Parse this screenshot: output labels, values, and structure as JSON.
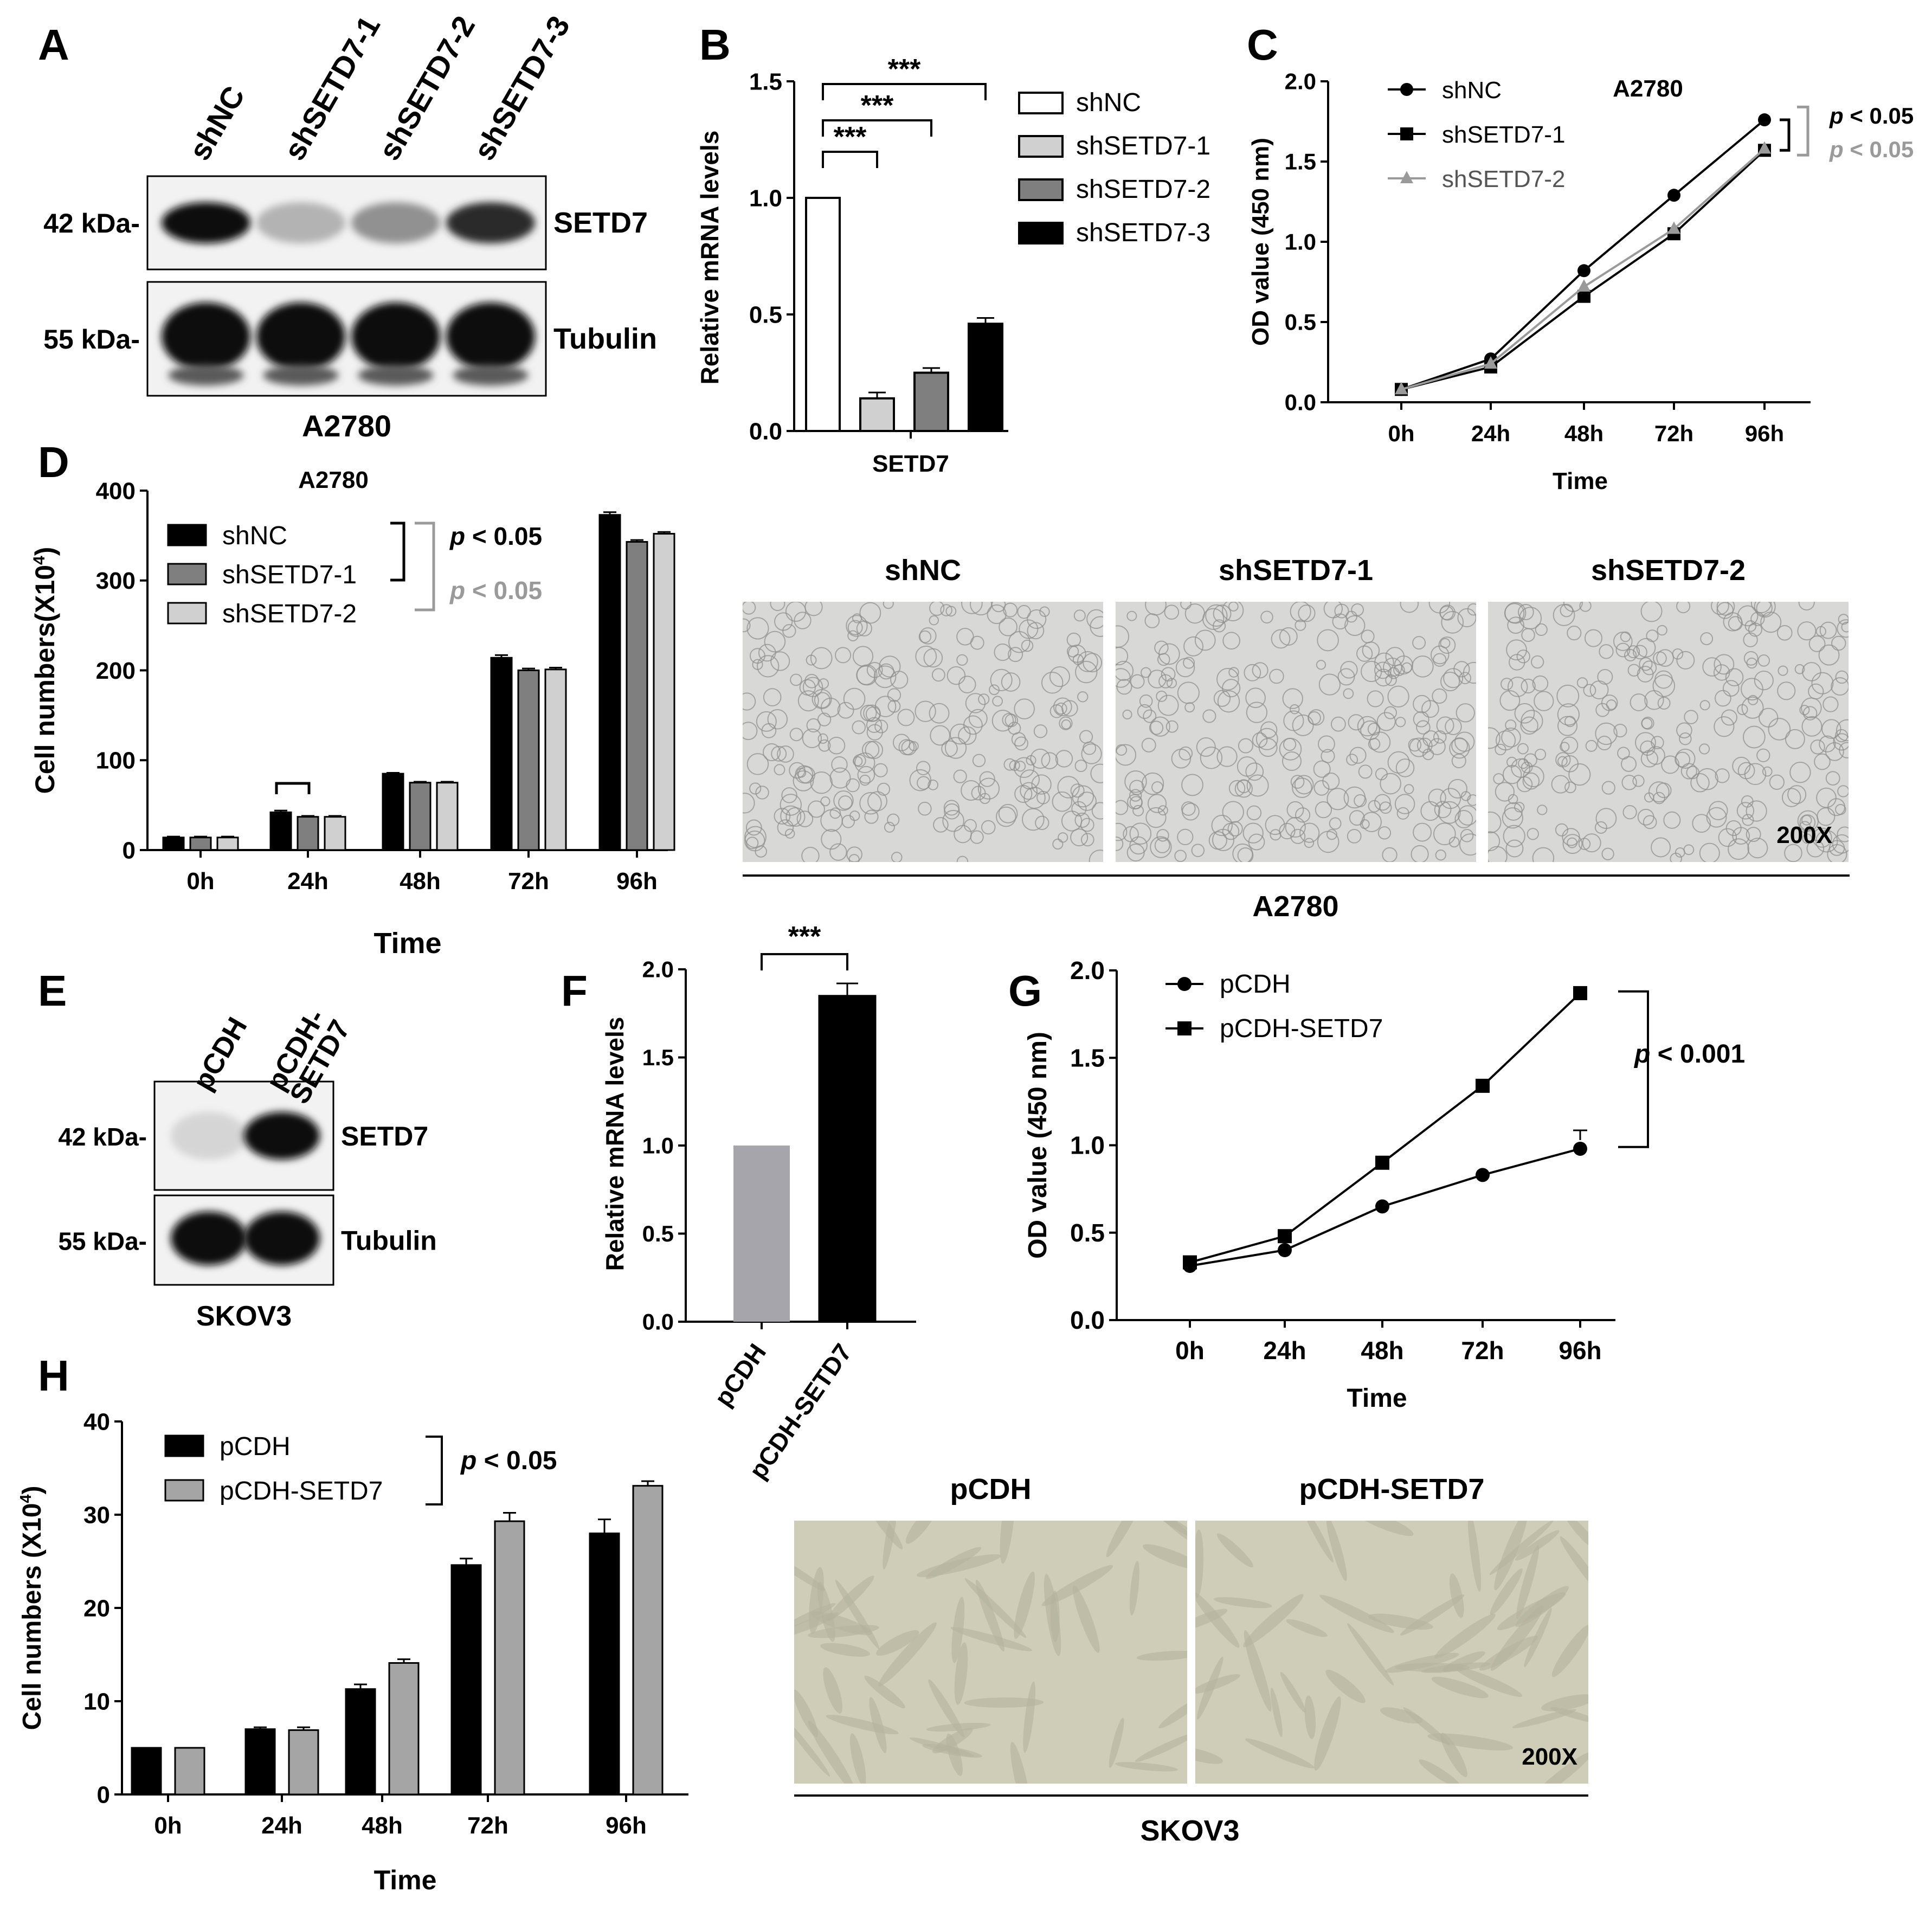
{
  "panel_labels": {
    "a": "A",
    "b": "B",
    "c": "C",
    "d": "D",
    "e": "E",
    "f": "F",
    "g": "G",
    "h": "H"
  },
  "colors": {
    "black": "#000000",
    "dark_gray": "#7f7f7f",
    "light_gray": "#d0d0d0",
    "mid_gray": "#9a9a9a",
    "pcdh_gray": "#a5a5ab",
    "h_gray": "#a5a5a5",
    "blot_bg": "#f2f2f2",
    "micro_a2780": "#d8d8d6",
    "micro_skov3": "#cfcdb8"
  },
  "panel_a": {
    "lanes": [
      "shNC",
      "shSETD7-1",
      "shSETD7-2",
      "shSETD7-3"
    ],
    "bands": [
      {
        "mw": "42 kDa-",
        "protein": "SETD7"
      },
      {
        "mw": "55 kDa-",
        "protein": "Tubulin"
      }
    ],
    "setd7_intensity": [
      1.0,
      0.25,
      0.4,
      0.85
    ],
    "cell_line": "A2780"
  },
  "panel_e": {
    "lanes": [
      "pCDH",
      "pCDH-\nSETD7"
    ],
    "bands": [
      {
        "mw": "42 kDa-",
        "protein": "SETD7"
      },
      {
        "mw": "55 kDa-",
        "protein": "Tubulin"
      }
    ],
    "setd7_intensity": [
      0.1,
      1.0
    ],
    "cell_line": "SKOV3"
  },
  "panel_d_images": {
    "labels": [
      "shNC",
      "shSETD7-1",
      "shSETD7-2"
    ],
    "magnification": "200X",
    "cell_line": "A2780"
  },
  "panel_h_images": {
    "labels": [
      "pCDH",
      "pCDH-SETD7"
    ],
    "magnification": "200X",
    "cell_line": "SKOV3"
  },
  "chart_data": [
    {
      "id": "B",
      "type": "bar",
      "categories": [
        "SETD7"
      ],
      "series": [
        {
          "name": "shNC",
          "values": [
            1.0
          ],
          "error": [
            0
          ]
        },
        {
          "name": "shSETD7-1",
          "values": [
            0.14
          ],
          "error": [
            0.025
          ]
        },
        {
          "name": "shSETD7-2",
          "values": [
            0.25
          ],
          "error": [
            0.02
          ]
        },
        {
          "name": "shSETD7-3",
          "values": [
            0.46
          ],
          "error": [
            0.025
          ]
        }
      ],
      "ylabel": "Relative mRNA levels",
      "xlabel": "",
      "ylim": [
        0,
        1.5
      ],
      "yticks": [
        "0.0",
        "0.5",
        "1.0",
        "1.5"
      ],
      "significance": [
        "***",
        "***",
        "***"
      ],
      "legend": "right"
    },
    {
      "id": "C",
      "type": "line",
      "title": "A2780",
      "x": [
        "0h",
        "24h",
        "48h",
        "72h",
        "96h"
      ],
      "series": [
        {
          "name": "shNC",
          "values": [
            0.08,
            0.27,
            0.82,
            1.29,
            1.76
          ]
        },
        {
          "name": "shSETD7-1",
          "values": [
            0.08,
            0.22,
            0.66,
            1.05,
            1.57
          ]
        },
        {
          "name": "shSETD7-2",
          "values": [
            0.08,
            0.24,
            0.72,
            1.08,
            1.58
          ]
        }
      ],
      "xlabel": "Time",
      "ylabel": "OD value (450 nm)",
      "ylim": [
        0,
        2.0
      ],
      "yticks": [
        "0.0",
        "0.5",
        "1.0",
        "1.5",
        "2.0"
      ],
      "annotations": [
        {
          "p": "p",
          "text": " < 0.05"
        },
        {
          "p": "p",
          "text": " < 0.05"
        }
      ],
      "legend": "top-left"
    },
    {
      "id": "D",
      "type": "bar",
      "title": "A2780",
      "categories": [
        "0h",
        "24h",
        "48h",
        "72h",
        "96h"
      ],
      "series": [
        {
          "name": "shNC",
          "values": [
            14,
            42,
            85,
            214,
            373
          ],
          "error": [
            1,
            2,
            1,
            3,
            3
          ]
        },
        {
          "name": "shSETD7-1",
          "values": [
            14,
            37,
            75,
            200,
            343
          ],
          "error": [
            1,
            1,
            1,
            2,
            2
          ]
        },
        {
          "name": "shSETD7-2",
          "values": [
            14,
            37,
            75,
            201,
            352
          ],
          "error": [
            1,
            1,
            1,
            2,
            2
          ]
        }
      ],
      "xlabel": "Time",
      "ylabel": "Cell numbers(X10",
      "ylabel_sup": "4",
      "ylabel_end": ")",
      "ylim": [
        0,
        400
      ],
      "yticks": [
        "0",
        "100",
        "200",
        "300",
        "400"
      ],
      "annotations": [
        {
          "p": "p",
          "text": " < 0.05"
        },
        {
          "p": "p",
          "text": " < 0.05"
        }
      ],
      "legend": "top-left"
    },
    {
      "id": "F",
      "type": "bar",
      "categories": [
        "pCDH",
        "pCDH-SETD7"
      ],
      "values": [
        1.0,
        1.85
      ],
      "error": [
        0,
        0.07
      ],
      "ylabel": "Relative mRNA levels",
      "ylim": [
        0,
        2.0
      ],
      "yticks": [
        "0.0",
        "0.5",
        "1.0",
        "1.5",
        "2.0"
      ],
      "significance": "***"
    },
    {
      "id": "G",
      "type": "line",
      "x": [
        "0h",
        "24h",
        "48h",
        "72h",
        "96h"
      ],
      "series": [
        {
          "name": "pCDH",
          "values": [
            0.31,
            0.4,
            0.65,
            0.83,
            0.98
          ]
        },
        {
          "name": "pCDH-SETD7",
          "values": [
            0.33,
            0.48,
            0.9,
            1.34,
            1.87
          ]
        }
      ],
      "xlabel": "Time",
      "ylabel": "OD value (450 nm)",
      "ylim": [
        0,
        2.0
      ],
      "yticks": [
        "0.0",
        "0.5",
        "1.0",
        "1.5",
        "2.0"
      ],
      "annotations": [
        {
          "p": "p",
          "text": " < 0.001"
        }
      ],
      "legend": "top-left"
    },
    {
      "id": "H",
      "type": "bar",
      "categories": [
        "0h",
        "24h",
        "48h",
        "72h",
        "96h"
      ],
      "series": [
        {
          "name": "pCDH",
          "values": [
            5,
            7,
            11.3,
            24.6,
            28
          ],
          "error": [
            0,
            0.2,
            0.5,
            0.7,
            1.5
          ]
        },
        {
          "name": "pCDH-SETD7",
          "values": [
            5,
            6.9,
            14.1,
            29.3,
            33.1
          ],
          "error": [
            0,
            0.3,
            0.4,
            0.9,
            0.5
          ]
        }
      ],
      "xlabel": "Time",
      "ylabel": "Cell numbers (X10",
      "ylabel_sup": "4",
      "ylabel_end": ")",
      "ylim": [
        0,
        40
      ],
      "yticks": [
        "0",
        "10",
        "20",
        "30",
        "40"
      ],
      "annotations": [
        {
          "p": "p",
          "text": " < 0.05"
        }
      ],
      "legend": "top-left"
    }
  ]
}
